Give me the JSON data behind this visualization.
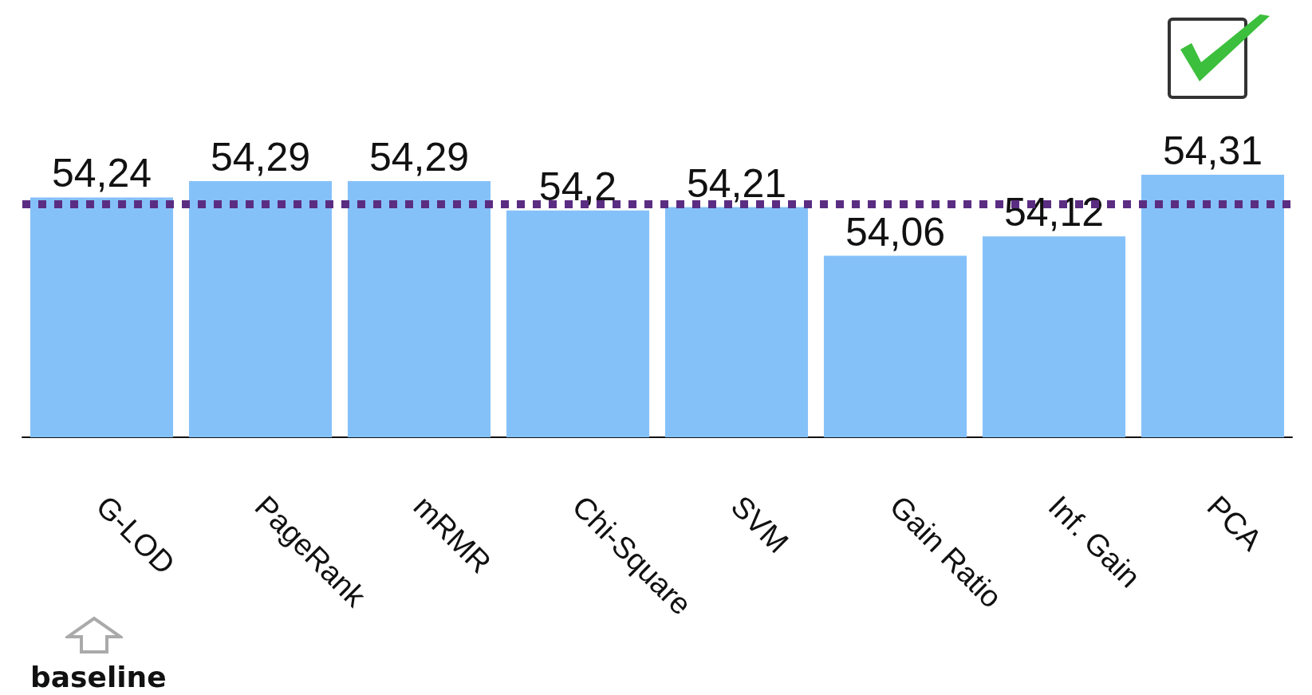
{
  "chart_data": {
    "type": "bar",
    "categories": [
      "G-LOD",
      "PageRank",
      "mRMR",
      "Chi-Square",
      "SVM",
      "Gain Ratio",
      "Inf. Gain",
      "PCA"
    ],
    "values": [
      54.24,
      54.29,
      54.29,
      54.2,
      54.21,
      54.06,
      54.12,
      54.31
    ],
    "ylim": [
      53.5,
      54.31
    ],
    "value_labels": [
      "54,24",
      "54,29",
      "54,29",
      "54,2",
      "54,21",
      "54,06",
      "54,12",
      "54,31"
    ],
    "color": "#85c1f9",
    "tick_labels": "x",
    "ref_lines": [
      {
        "axis": "y",
        "value": 54.22,
        "color": "#5b2d82",
        "line_style": "dotted"
      }
    ],
    "annotations": [
      "baseline"
    ]
  }
}
